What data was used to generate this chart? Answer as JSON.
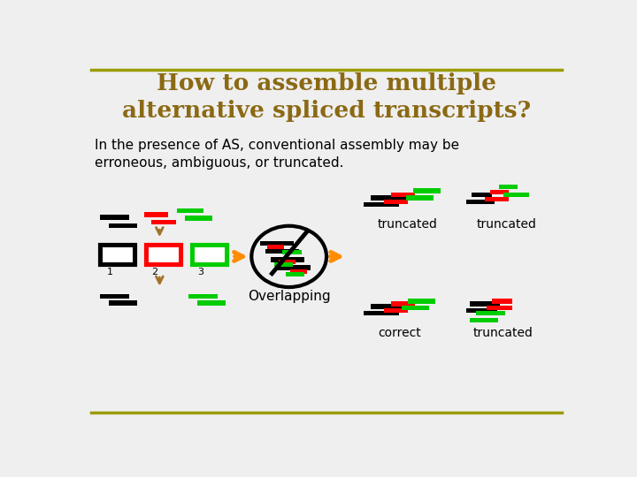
{
  "title": "How to assemble multiple\nalternative spliced transcripts?",
  "title_color": "#8B6914",
  "subtitle": "In the presence of AS, conventional assembly may be\nerroneous, ambiguous, or truncated.",
  "subtitle_color": "#000000",
  "bg_color": "#EFEFEF",
  "top_line_color": "#9B9B00",
  "bottom_line_color": "#9B9B00",
  "arrow_color": "#FF8C00",
  "brown_arrow_color": "#A0722A",
  "overlapping_text": "Overlapping",
  "label_truncated": "truncated",
  "label_correct": "correct"
}
